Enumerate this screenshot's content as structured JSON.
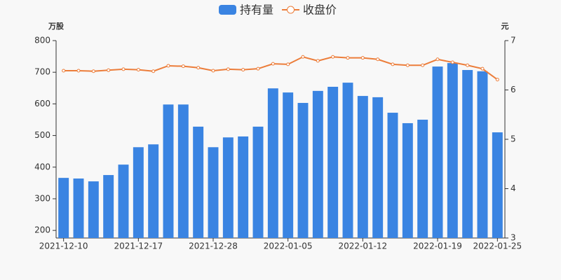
{
  "chart_data": {
    "type": "bar-line",
    "categories": [
      "2021-12-10",
      null,
      null,
      null,
      null,
      "2021-12-17",
      null,
      null,
      null,
      null,
      "2021-12-28",
      null,
      null,
      null,
      null,
      "2022-01-05",
      null,
      null,
      null,
      null,
      "2022-01-12",
      null,
      null,
      null,
      null,
      "2022-01-19",
      null,
      null,
      null,
      "2022-01-25"
    ],
    "series": [
      {
        "name": "持有量",
        "color": "#3a84e2",
        "type": "bar",
        "values": [
          366,
          364,
          355,
          375,
          408,
          463,
          472,
          598,
          598,
          528,
          463,
          494,
          497,
          528,
          649,
          636,
          603,
          641,
          654,
          667,
          625,
          621,
          572,
          539,
          550,
          718,
          729,
          707,
          703,
          510
        ]
      },
      {
        "name": "收盘价",
        "color": "#ec7d3a",
        "type": "line",
        "axis": "y2",
        "values": [
          6.39,
          6.39,
          6.38,
          6.4,
          6.42,
          6.41,
          6.38,
          6.49,
          6.48,
          6.45,
          6.39,
          6.42,
          6.41,
          6.43,
          6.53,
          6.52,
          6.67,
          6.59,
          6.67,
          6.65,
          6.65,
          6.62,
          6.52,
          6.5,
          6.5,
          6.62,
          6.56,
          6.5,
          6.43,
          6.21
        ]
      }
    ],
    "y_label": "万股",
    "y2_label": "元",
    "ylim": [
      176,
      800
    ],
    "yticks": [
      200,
      300,
      400,
      500,
      600,
      700,
      800
    ],
    "y2lim": [
      3,
      7
    ],
    "y2ticks": [
      3,
      4,
      5,
      6,
      7
    ]
  }
}
